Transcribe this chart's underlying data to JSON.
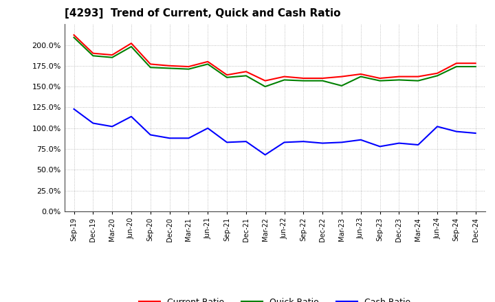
{
  "title": "[4293]  Trend of Current, Quick and Cash Ratio",
  "x_labels": [
    "Sep-19",
    "Dec-19",
    "Mar-20",
    "Jun-20",
    "Sep-20",
    "Dec-20",
    "Mar-21",
    "Jun-21",
    "Sep-21",
    "Dec-21",
    "Mar-22",
    "Jun-22",
    "Sep-22",
    "Dec-22",
    "Mar-23",
    "Jun-23",
    "Sep-23",
    "Dec-23",
    "Mar-24",
    "Jun-24",
    "Sep-24",
    "Dec-24"
  ],
  "current_ratio": [
    2.12,
    1.9,
    1.88,
    2.02,
    1.77,
    1.75,
    1.74,
    1.8,
    1.64,
    1.68,
    1.57,
    1.62,
    1.6,
    1.6,
    1.62,
    1.65,
    1.6,
    1.62,
    1.62,
    1.66,
    1.78,
    1.78
  ],
  "quick_ratio": [
    2.09,
    1.87,
    1.85,
    1.98,
    1.73,
    1.72,
    1.71,
    1.77,
    1.61,
    1.63,
    1.5,
    1.58,
    1.57,
    1.57,
    1.51,
    1.62,
    1.57,
    1.58,
    1.57,
    1.63,
    1.74,
    1.74
  ],
  "cash_ratio": [
    1.23,
    1.06,
    1.02,
    1.14,
    0.92,
    0.88,
    0.88,
    1.0,
    0.83,
    0.84,
    0.68,
    0.83,
    0.84,
    0.82,
    0.83,
    0.86,
    0.78,
    0.82,
    0.8,
    1.02,
    0.96,
    0.94
  ],
  "current_color": "#ff0000",
  "quick_color": "#008000",
  "cash_color": "#0000ff",
  "line_width": 1.5,
  "ylim": [
    0.0,
    2.25
  ],
  "yticks": [
    0.0,
    0.25,
    0.5,
    0.75,
    1.0,
    1.25,
    1.5,
    1.75,
    2.0
  ],
  "background_color": "#ffffff",
  "grid_color": "#999999",
  "title_fontsize": 11,
  "legend_fontsize": 9,
  "tick_fontsize": 8,
  "xtick_fontsize": 7
}
